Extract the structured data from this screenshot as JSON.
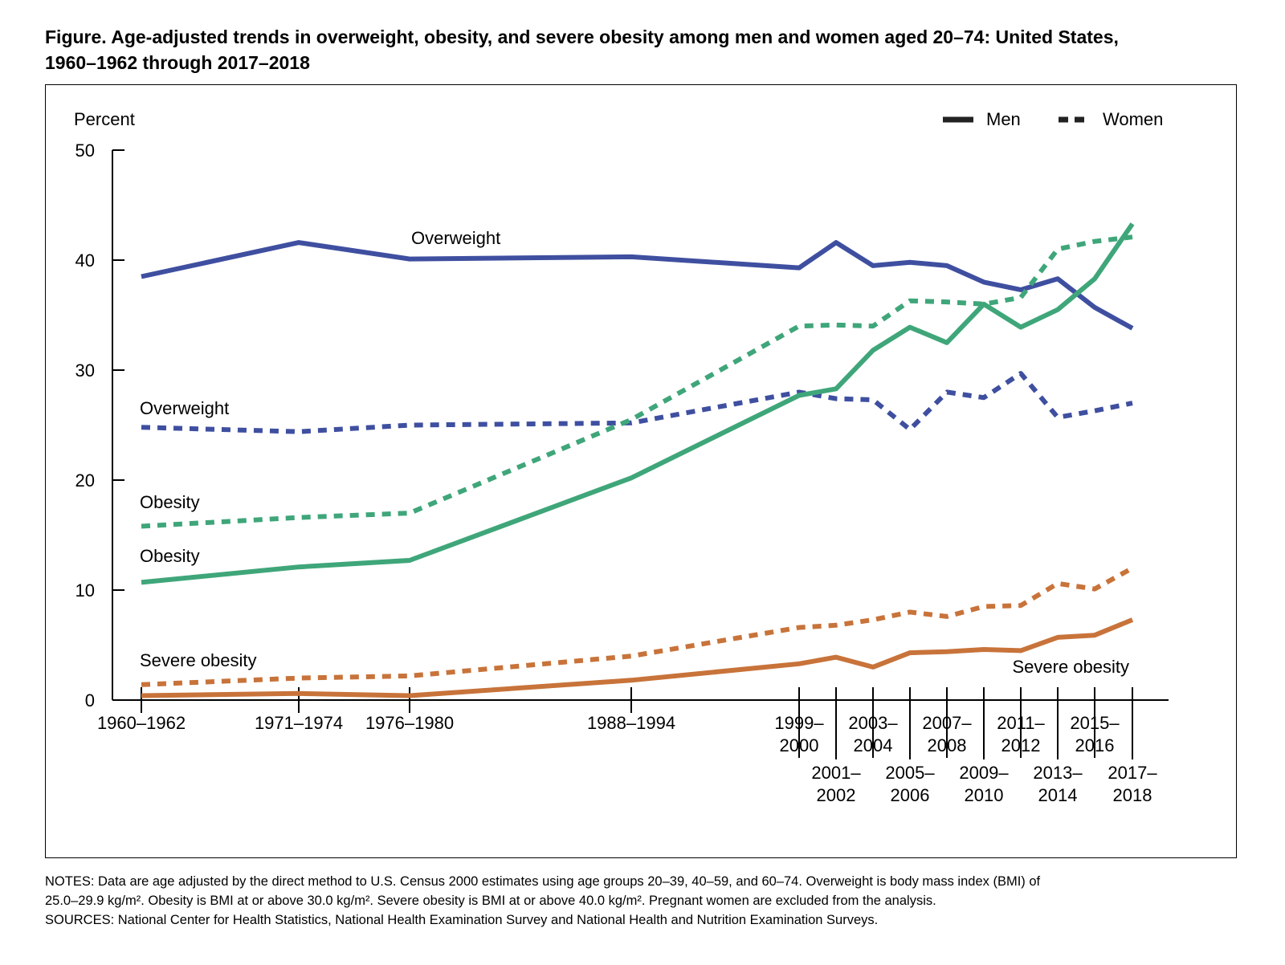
{
  "title": {
    "line1": "Figure. Age-adjusted trends in overweight, obesity, and severe obesity among men and women aged 20–74: United States,",
    "line2": "1960–1962 through 2017–2018"
  },
  "notes": {
    "line1": "NOTES: Data are age adjusted by the direct method to U.S. Census 2000 estimates using age groups 20–39, 40–59, and 60–74. Overweight is body mass index (BMI) of",
    "line2": "25.0–29.9 kg/m². Obesity is BMI at or above 30.0 kg/m². Severe obesity is BMI at or above 40.0 kg/m². Pregnant women are excluded from the analysis.",
    "line3": "SOURCES: National Center for Health Statistics, National Health Examination Survey and National Health and Nutrition Examination Surveys."
  },
  "colors": {
    "overweight": "#3f4fa0",
    "obesity": "#3fa67a",
    "severe_obesity": "#c8733a"
  },
  "chart_data": {
    "type": "line",
    "ylabel": "Percent",
    "ylim": [
      0,
      50
    ],
    "yticks": [
      0,
      10,
      20,
      30,
      40,
      50
    ],
    "grid": false,
    "legend_position": "top-right",
    "legend": [
      {
        "label": "Men",
        "style": "solid"
      },
      {
        "label": "Women",
        "style": "dashed"
      }
    ],
    "x": [
      "1960–1962",
      "1971–1974",
      "1976–1980",
      "1988–1994",
      "1999–2000",
      "2001–2002",
      "2003–2004",
      "2005–2006",
      "2007–2008",
      "2009–2010",
      "2011–2012",
      "2013–2014",
      "2015–2016",
      "2017–2018"
    ],
    "x_label_lines": [
      [
        "1960–1962"
      ],
      [
        "1971–1974"
      ],
      [
        "1976–1980"
      ],
      [
        "1988–1994"
      ],
      [
        "1999–",
        "2000"
      ],
      [
        "2001–",
        "2002"
      ],
      [
        "2003–",
        "2004"
      ],
      [
        "2005–",
        "2006"
      ],
      [
        "2007–",
        "2008"
      ],
      [
        "2009–",
        "2010"
      ],
      [
        "2011–",
        "2012"
      ],
      [
        "2013–",
        "2014"
      ],
      [
        "2015–",
        "2016"
      ],
      [
        "2017–",
        "2018"
      ]
    ],
    "series": [
      {
        "label": "Overweight",
        "group": "Men",
        "style": "solid",
        "color": "#3f4fa0",
        "values": [
          38.5,
          41.6,
          40.1,
          40.3,
          39.3,
          41.6,
          39.5,
          39.8,
          39.5,
          38.0,
          37.3,
          38.3,
          35.7,
          33.8
        ]
      },
      {
        "label": "Overweight",
        "group": "Women",
        "style": "dashed",
        "color": "#3f4fa0",
        "values": [
          24.8,
          24.4,
          25.0,
          25.2,
          28.0,
          27.4,
          27.3,
          24.6,
          28.0,
          27.5,
          29.7,
          25.7,
          26.3,
          27.0
        ]
      },
      {
        "label": "Obesity",
        "group": "Men",
        "style": "solid",
        "color": "#3fa67a",
        "values": [
          10.7,
          12.1,
          12.7,
          20.2,
          27.7,
          28.3,
          31.8,
          33.9,
          32.5,
          36.0,
          33.9,
          35.5,
          38.3,
          43.3
        ]
      },
      {
        "label": "Obesity",
        "group": "Women",
        "style": "dashed",
        "color": "#3fa67a",
        "values": [
          15.8,
          16.6,
          17.0,
          25.5,
          34.0,
          34.1,
          34.0,
          36.3,
          36.2,
          36.0,
          36.6,
          41.0,
          41.7,
          42.1
        ]
      },
      {
        "label": "Severe obesity",
        "group": "Men",
        "style": "solid",
        "color": "#c8733a",
        "values": [
          0.4,
          0.6,
          0.4,
          1.8,
          3.3,
          3.9,
          3.0,
          4.3,
          4.4,
          4.6,
          4.5,
          5.7,
          5.9,
          7.3
        ]
      },
      {
        "label": "Severe obesity",
        "group": "Women",
        "style": "dashed",
        "color": "#c8733a",
        "values": [
          1.4,
          2.0,
          2.2,
          4.0,
          6.6,
          6.8,
          7.3,
          8.0,
          7.6,
          8.5,
          8.6,
          10.6,
          10.1,
          12.0
        ]
      }
    ],
    "annotations": [
      {
        "text": "Overweight",
        "series": "Overweight (Men)"
      },
      {
        "text": "Overweight",
        "series": "Overweight (Women)"
      },
      {
        "text": "Obesity",
        "series": "Obesity (Women)"
      },
      {
        "text": "Obesity",
        "series": "Obesity (Men)"
      },
      {
        "text": "Severe obesity",
        "series": "Severe obesity (Women)"
      },
      {
        "text": "Severe obesity",
        "series": "Severe obesity (Men)"
      }
    ]
  }
}
